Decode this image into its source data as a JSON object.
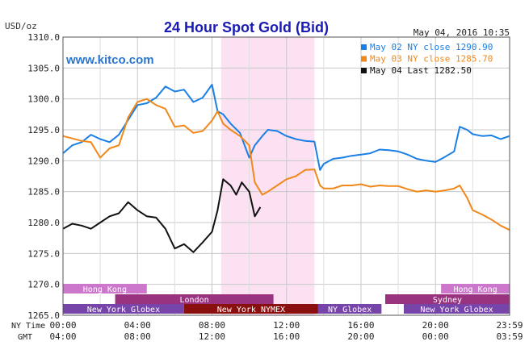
{
  "chart_data": {
    "type": "line",
    "title": "24 Hour Spot Gold (Bid)",
    "unit_label": "USD/oz",
    "date_label": "May 04, 2016 10:35",
    "watermark": "www.kitco.com",
    "ylim": [
      1265,
      1310
    ],
    "yticks": [
      "1310.0",
      "1305.0",
      "1300.0",
      "1295.0",
      "1290.0",
      "1285.0",
      "1280.0",
      "1275.0",
      "1270.0",
      "1265.0"
    ],
    "grid": true,
    "legend_position": "top-right",
    "x_row_labels": {
      "ny": "NY Time",
      "gmt": "GMT"
    },
    "x_ticks_ny": [
      "00:00",
      "04:00",
      "08:00",
      "12:00",
      "16:00",
      "20:00",
      "23:59"
    ],
    "x_ticks_gmt": [
      "04:00",
      "08:00",
      "12:00",
      "16:00",
      "20:00",
      "00:00",
      "03:59"
    ],
    "highlight_hours": [
      8.5,
      13.5
    ],
    "series": [
      {
        "name": "May 02 NY close 1290.90",
        "color": "#1a7fe6",
        "x": [
          0,
          0.5,
          1,
          1.5,
          2,
          2.5,
          3,
          3.5,
          4,
          4.5,
          5,
          5.5,
          6,
          6.5,
          7,
          7.5,
          8,
          8.3,
          8.6,
          9,
          9.5,
          10,
          10.3,
          10.7,
          11,
          11.5,
          12,
          12.5,
          13,
          13.5,
          13.8,
          14,
          14.5,
          15,
          15.5,
          16,
          16.5,
          17,
          17.5,
          18,
          18.5,
          19,
          19.5,
          20,
          20.5,
          21,
          21.3,
          21.7,
          22,
          22.5,
          23,
          23.5,
          23.98
        ],
        "y": [
          1291.2,
          1292.5,
          1293.0,
          1294.2,
          1293.5,
          1293.0,
          1294.2,
          1296.6,
          1299.0,
          1299.3,
          1300.2,
          1302.0,
          1301.2,
          1301.5,
          1299.5,
          1300.2,
          1302.3,
          1298.0,
          1297.5,
          1296.0,
          1294.5,
          1290.5,
          1292.5,
          1294.0,
          1295.0,
          1294.8,
          1294.0,
          1293.5,
          1293.2,
          1293.1,
          1288.5,
          1289.5,
          1290.3,
          1290.5,
          1290.8,
          1291.0,
          1291.2,
          1291.8,
          1291.7,
          1291.5,
          1291.0,
          1290.3,
          1290.0,
          1289.8,
          1290.6,
          1291.5,
          1295.5,
          1295.0,
          1294.3,
          1294.0,
          1294.1,
          1293.5,
          1294.0
        ]
      },
      {
        "name": "May 03 NY close 1285.70",
        "color": "#f0881a",
        "x": [
          0,
          0.5,
          1,
          1.5,
          2,
          2.5,
          3,
          3.5,
          4,
          4.5,
          5,
          5.5,
          6,
          6.5,
          7,
          7.5,
          8,
          8.3,
          8.6,
          9,
          9.5,
          10,
          10.3,
          10.7,
          11,
          11.5,
          12,
          12.5,
          13,
          13.5,
          13.8,
          14,
          14.5,
          15,
          15.5,
          16,
          16.5,
          17,
          17.5,
          18,
          18.5,
          19,
          19.5,
          20,
          20.5,
          21,
          21.3,
          21.7,
          22,
          22.5,
          23,
          23.5,
          23.98
        ],
        "y": [
          1294.0,
          1293.6,
          1293.2,
          1293.0,
          1290.5,
          1292.0,
          1292.5,
          1297.0,
          1299.5,
          1300.0,
          1299.0,
          1298.4,
          1295.5,
          1295.7,
          1294.5,
          1294.8,
          1296.5,
          1298.0,
          1296.0,
          1295.0,
          1294.0,
          1292.5,
          1286.5,
          1284.5,
          1285.0,
          1286.0,
          1287.0,
          1287.5,
          1288.5,
          1288.6,
          1286.0,
          1285.5,
          1285.5,
          1286.0,
          1286.0,
          1286.2,
          1285.8,
          1286.0,
          1285.9,
          1285.9,
          1285.4,
          1285.0,
          1285.2,
          1285.0,
          1285.2,
          1285.5,
          1286.0,
          1284.0,
          1282.0,
          1281.3,
          1280.5,
          1279.5,
          1278.8
        ]
      },
      {
        "name": "May 04 Last 1282.50",
        "color": "#111111",
        "x": [
          0,
          0.5,
          1,
          1.5,
          2,
          2.5,
          3,
          3.5,
          4,
          4.5,
          5,
          5.5,
          6,
          6.5,
          7,
          7.5,
          8,
          8.3,
          8.6,
          9,
          9.3,
          9.6,
          10,
          10.3,
          10.6
        ],
        "y": [
          1279.0,
          1279.8,
          1279.5,
          1279.0,
          1280.0,
          1281.0,
          1281.5,
          1283.3,
          1282.0,
          1281.0,
          1280.8,
          1279.0,
          1275.8,
          1276.5,
          1275.2,
          1276.8,
          1278.5,
          1282.0,
          1287.0,
          1286.0,
          1284.5,
          1286.5,
          1285.0,
          1281.0,
          1282.5
        ]
      }
    ],
    "sessions": [
      {
        "label": "Hong Kong",
        "row": 0,
        "start": 0,
        "end": 4.5,
        "color": "#cc77cc"
      },
      {
        "label": "Hong Kong",
        "row": 0,
        "start": 20.3,
        "end": 23.98,
        "color": "#cc77cc"
      },
      {
        "label": "London",
        "row": 1,
        "start": 2.8,
        "end": 11.3,
        "color": "#99337f"
      },
      {
        "label": "Sydney",
        "row": 1,
        "start": 17.3,
        "end": 23.98,
        "color": "#99337f"
      },
      {
        "label": "New York Globex",
        "row": 2,
        "start": 0,
        "end": 6.5,
        "color": "#7744aa"
      },
      {
        "label": "New York NYMEX",
        "row": 2,
        "start": 6.5,
        "end": 13.7,
        "color": "#8a1010"
      },
      {
        "label": "NY Globex",
        "row": 2,
        "start": 13.7,
        "end": 17.1,
        "color": "#7744aa"
      },
      {
        "label": "New York Globex",
        "row": 2,
        "start": 18.3,
        "end": 23.98,
        "color": "#7744aa"
      }
    ]
  }
}
